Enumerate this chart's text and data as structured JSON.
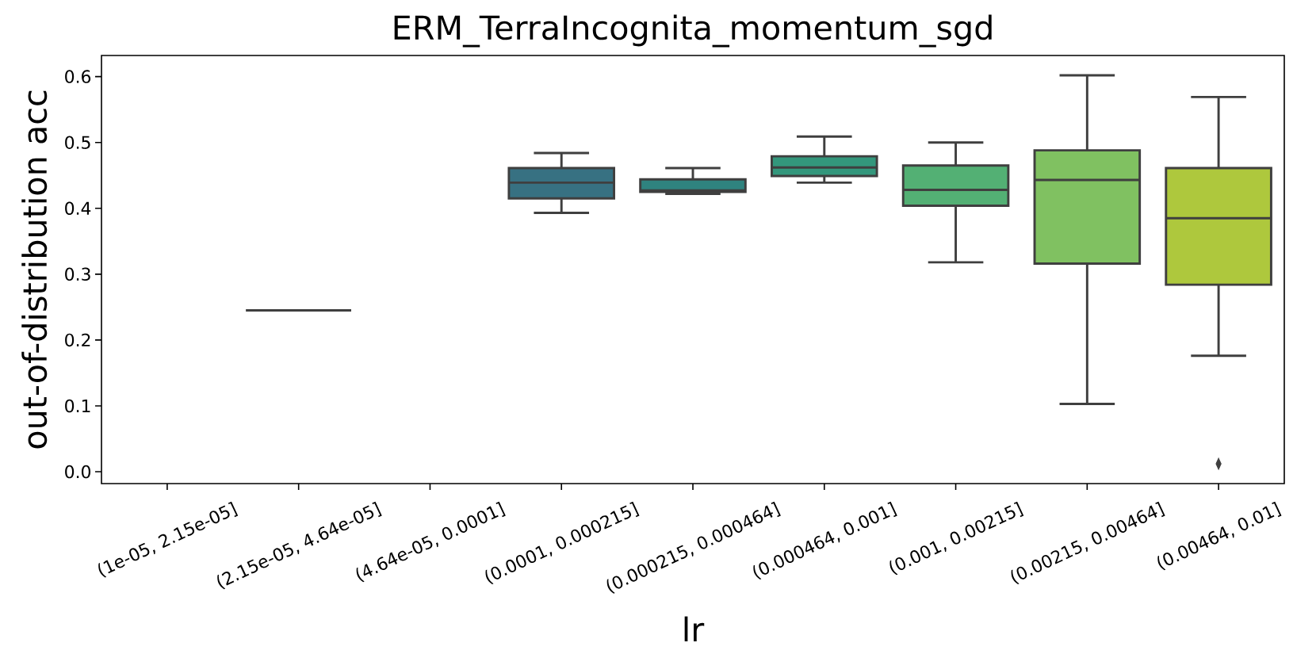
{
  "chart_data": {
    "type": "box",
    "title": "ERM_TerraIncognita_momentum_sgd",
    "xlabel": "lr",
    "ylabel": "out-of-distribution acc",
    "categories": [
      "(1e-05, 2.15e-05]",
      "(2.15e-05, 4.64e-05]",
      "(4.64e-05, 0.0001]",
      "(0.0001, 0.000215]",
      "(0.000215, 0.000464]",
      "(0.000464, 0.001]",
      "(0.001, 0.00215]",
      "(0.00215, 0.00464]",
      "(0.00464, 0.01]"
    ],
    "boxes": [
      null,
      {
        "low": 0.245,
        "q1": 0.245,
        "median": 0.245,
        "q3": 0.245,
        "high": 0.245
      },
      null,
      {
        "low": 0.393,
        "q1": 0.415,
        "median": 0.439,
        "q3": 0.461,
        "high": 0.484
      },
      {
        "low": 0.422,
        "q1": 0.425,
        "median": 0.427,
        "q3": 0.444,
        "high": 0.461
      },
      {
        "low": 0.439,
        "q1": 0.449,
        "median": 0.462,
        "q3": 0.479,
        "high": 0.509
      },
      {
        "low": 0.318,
        "q1": 0.404,
        "median": 0.428,
        "q3": 0.465,
        "high": 0.5
      },
      {
        "low": 0.103,
        "q1": 0.316,
        "median": 0.443,
        "q3": 0.488,
        "high": 0.602
      },
      {
        "low": 0.176,
        "q1": 0.284,
        "median": 0.385,
        "q3": 0.461,
        "high": 0.569,
        "outliers": [
          0.012
        ]
      }
    ],
    "colors": [
      null,
      null,
      null,
      "#377182",
      "#2f837f",
      "#33977c",
      "#53b074",
      "#80c161",
      "#aec83d"
    ],
    "ylim": [
      -0.018,
      0.632
    ],
    "yticks": [
      {
        "value": 0,
        "label": "0.0"
      },
      0.1,
      0.2,
      0.3,
      0.4,
      0.5,
      0.6
    ]
  }
}
